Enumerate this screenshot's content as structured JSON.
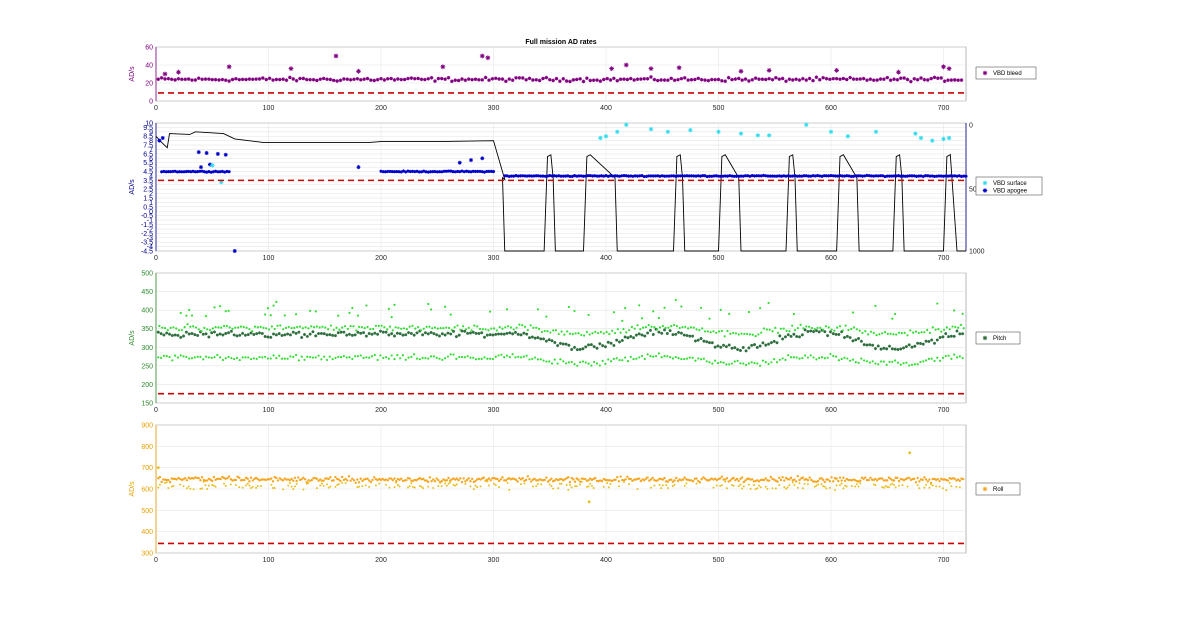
{
  "figure": {
    "title": "Full mission AD rates"
  },
  "chart_data": [
    {
      "type": "scatter",
      "ylabel": "AD/s",
      "xlim": [
        0,
        720
      ],
      "ylim": [
        0,
        60
      ],
      "xticks": [
        "0",
        "100",
        "200",
        "300",
        "400",
        "500",
        "600",
        "700"
      ],
      "yticks": [
        "0",
        "20",
        "40",
        "60"
      ],
      "grid": true,
      "legend_position": "right",
      "colors": {
        "axis": "#800080",
        "series": "#800080",
        "threshold": "#cc0000"
      },
      "series": [
        {
          "name": "VBD bleed",
          "marker": "star",
          "color": "#800080",
          "baseline": 24,
          "spread": 3,
          "outliers": [
            [
              8,
              30
            ],
            [
              20,
              32
            ],
            [
              65,
              38
            ],
            [
              120,
              36
            ],
            [
              160,
              50
            ],
            [
              180,
              33
            ],
            [
              255,
              38
            ],
            [
              290,
              50
            ],
            [
              295,
              48
            ],
            [
              405,
              36
            ],
            [
              418,
              40
            ],
            [
              440,
              36
            ],
            [
              465,
              37
            ],
            [
              520,
              33
            ],
            [
              545,
              34
            ],
            [
              605,
              34
            ],
            [
              660,
              32
            ],
            [
              700,
              38
            ],
            [
              705,
              36
            ]
          ]
        }
      ],
      "threshold": 9
    },
    {
      "type": "scatter",
      "ylabel": "AD/s",
      "xlim": [
        0,
        720
      ],
      "ylim": [
        -4.5,
        10
      ],
      "xticks": [
        "0",
        "100",
        "200",
        "300",
        "400",
        "500",
        "600",
        "700"
      ],
      "yticks": [
        "-4.5",
        "-4",
        "-3.5",
        "-3",
        "-2.5",
        "-2",
        "-1.5",
        "-1",
        "-0.5",
        "0",
        "0.5",
        "1",
        "1.5",
        "2",
        "2.5",
        "3",
        "3.5",
        "4",
        "4.5",
        "5",
        "5.5",
        "6",
        "6.5",
        "7",
        "7.5",
        "8",
        "8.5",
        "9",
        "9.5",
        "10"
      ],
      "y2ticks": [
        "0",
        "50",
        "1000"
      ],
      "grid": true,
      "legend_position": "right",
      "colors": {
        "axis": "#00008b",
        "surface": "#33ddee",
        "apogee": "#0000cc",
        "depth": "#000000",
        "threshold": "#cc0000"
      },
      "series": [
        {
          "name": "VBD surface",
          "marker": "star",
          "color": "#33ddee",
          "points": [
            [
              50,
              5.2
            ],
            [
              58,
              3.3
            ],
            [
              395,
              8.3
            ],
            [
              400,
              8.5
            ],
            [
              410,
              9.0
            ],
            [
              418,
              9.8
            ],
            [
              440,
              9.3
            ],
            [
              455,
              9.0
            ],
            [
              475,
              9.2
            ],
            [
              500,
              9.0
            ],
            [
              520,
              8.8
            ],
            [
              535,
              8.6
            ],
            [
              545,
              8.6
            ],
            [
              578,
              9.8
            ],
            [
              600,
              9.0
            ],
            [
              615,
              8.5
            ],
            [
              640,
              9.0
            ],
            [
              675,
              8.8
            ],
            [
              680,
              8.3
            ],
            [
              690,
              8.0
            ],
            [
              700,
              8.2
            ],
            [
              705,
              8.3
            ]
          ]
        },
        {
          "name": "VBD apogee",
          "marker": "star",
          "color": "#0000cc",
          "segments": [
            [
              5,
              65,
              4.5
            ],
            [
              200,
              300,
              4.5
            ],
            [
              310,
              720,
              4.0
            ]
          ]
        }
      ],
      "threshold": 3.5
    },
    {
      "type": "scatter",
      "ylabel": "AD/s",
      "xlim": [
        0,
        720
      ],
      "ylim": [
        150,
        500
      ],
      "xticks": [
        "0",
        "100",
        "200",
        "300",
        "400",
        "500",
        "600",
        "700"
      ],
      "yticks": [
        "150",
        "200",
        "250",
        "300",
        "350",
        "400",
        "450",
        "500"
      ],
      "grid": true,
      "legend_position": "right",
      "colors": {
        "axis": "#2e8b2e",
        "pitch": "#2f6f3f",
        "scatter": "#33dd33",
        "threshold": "#cc0000"
      },
      "series": [
        {
          "name": "Pitch",
          "marker": "star",
          "color": "#2f6f3f",
          "baseline": 330,
          "spread": 20
        }
      ],
      "threshold": 175
    },
    {
      "type": "scatter",
      "ylabel": "AD/s",
      "xlim": [
        0,
        720
      ],
      "ylim": [
        300,
        900
      ],
      "xticks": [
        "0",
        "100",
        "200",
        "300",
        "400",
        "500",
        "600",
        "700"
      ],
      "yticks": [
        "300",
        "400",
        "500",
        "600",
        "700",
        "800",
        "900"
      ],
      "grid": true,
      "legend_position": "right",
      "colors": {
        "axis": "#e8a000",
        "roll": "#f5a623",
        "scatter": "#e8c020",
        "threshold": "#cc0000"
      },
      "series": [
        {
          "name": "Roll",
          "marker": "star",
          "color": "#f5a623",
          "baseline": 645,
          "spread": 18,
          "outliers": [
            [
              2,
              700
            ],
            [
              670,
              770
            ],
            [
              385,
              540
            ]
          ]
        }
      ],
      "threshold": 345
    }
  ]
}
